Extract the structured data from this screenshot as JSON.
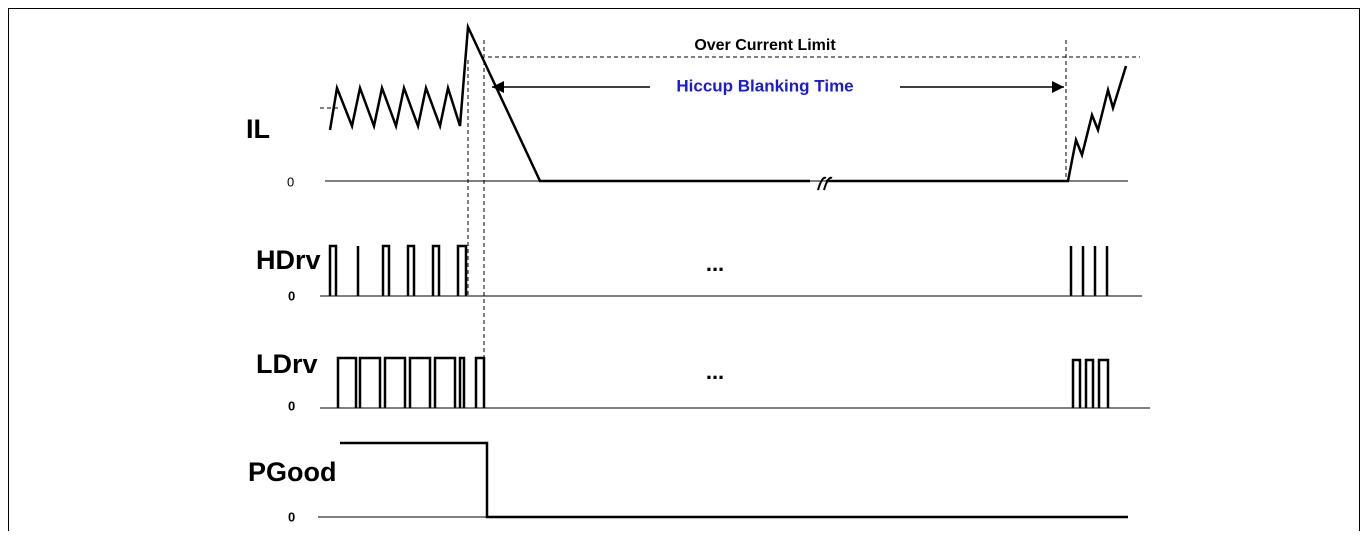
{
  "annotations": {
    "limit": "Over Current Limit",
    "blanking": "Hiccup Blanking Time"
  },
  "signals": [
    {
      "label": "IL",
      "zero": "0"
    },
    {
      "label": "HDrv",
      "zero": "0",
      "ellipsis": "..."
    },
    {
      "label": "LDrv",
      "zero": "0",
      "ellipsis": "..."
    },
    {
      "label": "PGood",
      "zero": "0"
    }
  ]
}
